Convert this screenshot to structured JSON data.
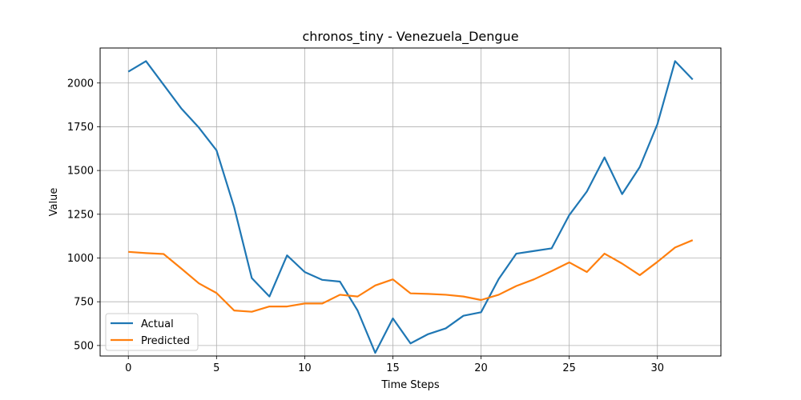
{
  "chart_data": {
    "type": "line",
    "title": "chronos_tiny - Venezuela_Dengue",
    "xlabel": "Time Steps",
    "ylabel": "Value",
    "xlim": [
      -1.6,
      33.6
    ],
    "ylim": [
      440,
      2200
    ],
    "xticks": [
      0,
      5,
      10,
      15,
      20,
      25,
      30
    ],
    "yticks": [
      500,
      750,
      1000,
      1250,
      1500,
      1750,
      2000
    ],
    "grid": true,
    "legend_position": "lower-left",
    "x": [
      0,
      1,
      2,
      3,
      4,
      5,
      6,
      7,
      8,
      9,
      10,
      11,
      12,
      13,
      14,
      15,
      16,
      17,
      18,
      19,
      20,
      21,
      22,
      23,
      24,
      25,
      26,
      27,
      28,
      29,
      30,
      31,
      32
    ],
    "series": [
      {
        "name": "Actual",
        "color": "#1f77b4",
        "values": [
          2065,
          2125,
          1990,
          1855,
          1745,
          1615,
          1290,
          885,
          780,
          1015,
          920,
          875,
          865,
          700,
          458,
          655,
          512,
          565,
          598,
          670,
          690,
          880,
          1025,
          1040,
          1055,
          1245,
          1380,
          1575,
          1365,
          1520,
          1765,
          2125,
          2020
        ]
      },
      {
        "name": "Predicted",
        "color": "#ff7f0e",
        "values": [
          1035,
          1028,
          1023,
          940,
          855,
          800,
          700,
          693,
          723,
          723,
          740,
          740,
          790,
          780,
          843,
          878,
          798,
          795,
          790,
          780,
          760,
          790,
          840,
          878,
          925,
          975,
          920,
          1025,
          968,
          902,
          978,
          1060,
          1102
        ]
      }
    ]
  }
}
